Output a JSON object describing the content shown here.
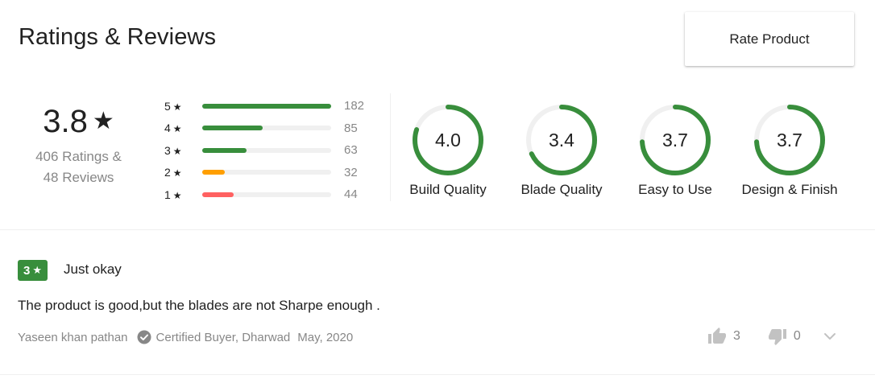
{
  "header": {
    "title": "Ratings & Reviews",
    "rate_button_label": "Rate Product"
  },
  "overall": {
    "score": "3.8",
    "star": "★",
    "ratings_text": "406 Ratings &",
    "reviews_text": "48 Reviews"
  },
  "distribution": [
    {
      "stars": "5",
      "count": "182",
      "fraction": 1.0,
      "color": "#388e3c"
    },
    {
      "stars": "4",
      "count": "85",
      "fraction": 0.467,
      "color": "#388e3c"
    },
    {
      "stars": "3",
      "count": "63",
      "fraction": 0.346,
      "color": "#388e3c"
    },
    {
      "stars": "2",
      "count": "32",
      "fraction": 0.176,
      "color": "#ff9f00"
    },
    {
      "stars": "1",
      "count": "44",
      "fraction": 0.242,
      "color": "#ff6161"
    }
  ],
  "features": [
    {
      "label": "Build Quality",
      "value": "4.0",
      "fraction": 0.8
    },
    {
      "label": "Blade Quality",
      "value": "3.4",
      "fraction": 0.68
    },
    {
      "label": "Easy to Use",
      "value": "3.7",
      "fraction": 0.74
    },
    {
      "label": "Design & Finish",
      "value": "3.7",
      "fraction": 0.74
    }
  ],
  "colors": {
    "accent_green": "#388e3c",
    "muted_text": "#878787",
    "track": "#f0f0f0"
  },
  "review": {
    "rating": "3",
    "star": "★",
    "title": "Just okay",
    "text": "The product is good,but the blades are not Sharpe enough .",
    "author": "Yaseen khan pathan",
    "certified": "Certified Buyer, Dharwad",
    "date": "May, 2020",
    "likes": "3",
    "dislikes": "0"
  },
  "icons": {
    "certified": "check-circle-icon",
    "like": "thumbs-up-icon",
    "dislike": "thumbs-down-icon",
    "more": "chevron-down-icon"
  }
}
